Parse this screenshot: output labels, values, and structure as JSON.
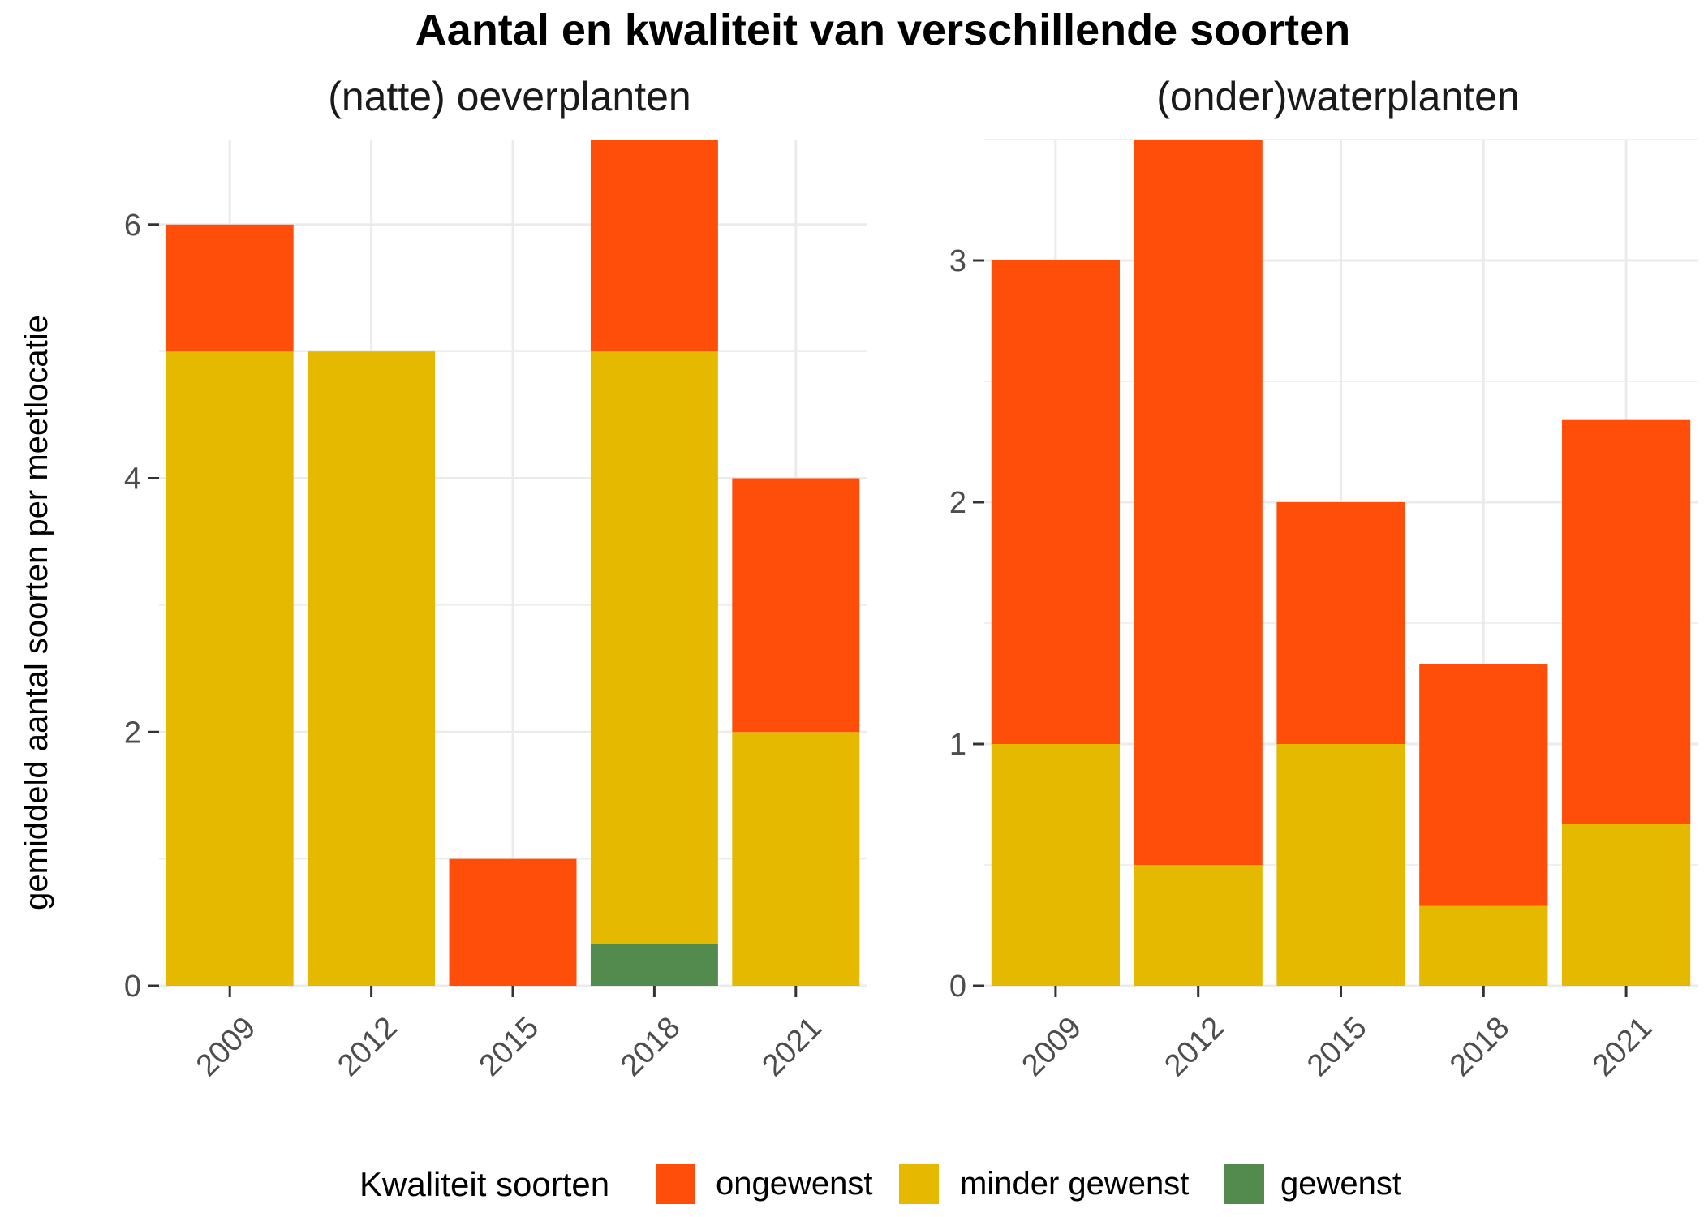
{
  "title": "Aantal en kwaliteit van verschillende soorten",
  "ylabel": "gemiddeld aantal soorten per meetlocatie",
  "legend": {
    "title": "Kwaliteit soorten",
    "position": "bottom",
    "items": [
      {
        "key": "ongewenst",
        "label": "ongewenst",
        "color": "#FF4E0A"
      },
      {
        "key": "minder_gewenst",
        "label": "minder gewenst",
        "color": "#E4B900"
      },
      {
        "key": "gewenst",
        "label": "gewenst",
        "color": "#538B4F"
      }
    ]
  },
  "colors": {
    "ongewenst": "#FF4E0A",
    "minder_gewenst": "#E4B900",
    "gewenst": "#538B4F",
    "grid": "#EBEBEB",
    "tick_text": "#4D4D4D"
  },
  "chart_data": [
    {
      "type": "bar",
      "stacked": true,
      "title": "(natte) oeverplanten",
      "categories": [
        "2009",
        "2012",
        "2015",
        "2018",
        "2021"
      ],
      "ylim": [
        0,
        6.67
      ],
      "yticks": [
        0,
        2,
        4,
        6
      ],
      "yticks_minor": [
        1,
        3,
        5
      ],
      "grid": true,
      "series": [
        {
          "name": "gewenst",
          "key": "gewenst",
          "values": [
            0,
            0,
            0,
            0.33,
            0
          ]
        },
        {
          "name": "minder gewenst",
          "key": "minder_gewenst",
          "values": [
            5,
            5,
            0,
            4.67,
            2
          ]
        },
        {
          "name": "ongewenst",
          "key": "ongewenst",
          "values": [
            1,
            0,
            1,
            1.67,
            2
          ]
        }
      ]
    },
    {
      "type": "bar",
      "stacked": true,
      "title": "(onder)waterplanten",
      "categories": [
        "2009",
        "2012",
        "2015",
        "2018",
        "2021"
      ],
      "ylim": [
        0,
        3.5
      ],
      "yticks": [
        0,
        1,
        2,
        3
      ],
      "yticks_minor": [
        0.5,
        1.5,
        2.5,
        3.5
      ],
      "grid": true,
      "series": [
        {
          "name": "gewenst",
          "key": "gewenst",
          "values": [
            0,
            0,
            0,
            0,
            0
          ]
        },
        {
          "name": "minder gewenst",
          "key": "minder_gewenst",
          "values": [
            1,
            0.5,
            1,
            0.33,
            0.67
          ]
        },
        {
          "name": "ongewenst",
          "key": "ongewenst",
          "values": [
            2,
            3,
            1,
            1,
            1.67
          ]
        }
      ]
    }
  ]
}
